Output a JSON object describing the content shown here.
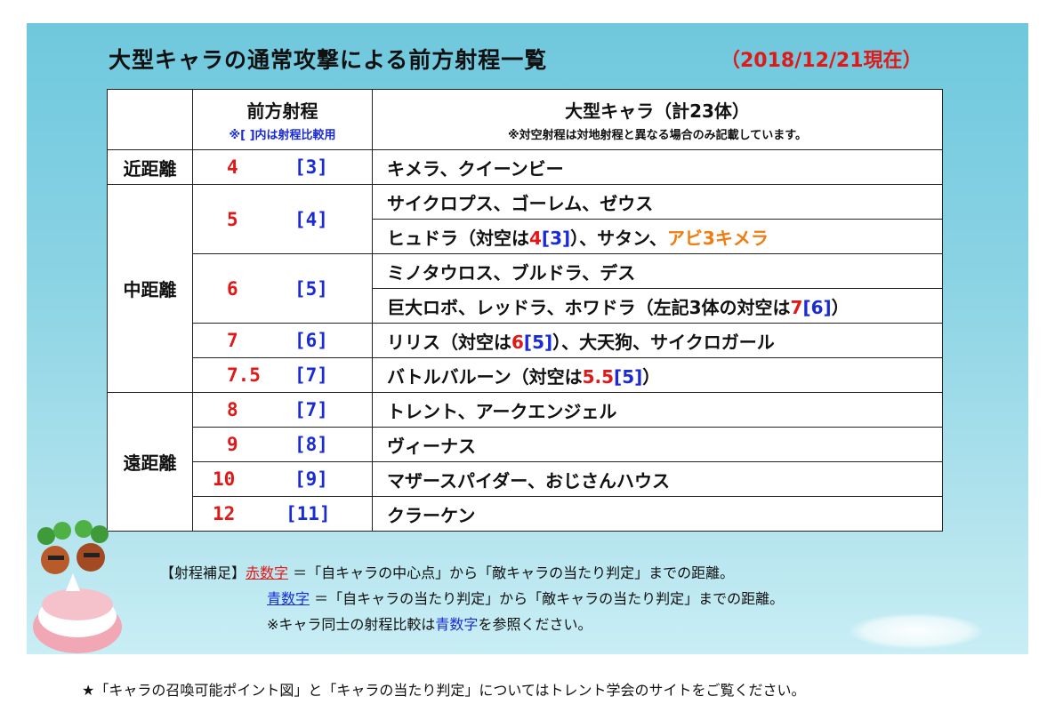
{
  "title": "大型キャラの通常攻撃による前方射程一覧",
  "date": "（2018/12/21現在）",
  "header": {
    "range_title": "前方射程",
    "range_note": "※[ ]内は射程比較用",
    "chars_title": "大型キャラ（計23体）",
    "chars_note": "※対空射程は対地射程と異なる場合のみ記載しています。"
  },
  "bands": {
    "near": "近距離",
    "mid": "中距離",
    "far": "遠距離"
  },
  "rows": [
    {
      "red": "4",
      "blue": "[3]",
      "chars": [
        "キメラ、クイーンビー"
      ]
    },
    {
      "red": "5",
      "blue": "[4]",
      "chars": [
        "サイクロプス、ゴーレム、ゼウス"
      ]
    },
    {
      "chars": [
        "ヒュドラ（対空は",
        "4",
        "[3]",
        "）、サタン、",
        "アビ3キメラ"
      ]
    },
    {
      "red": "6",
      "blue": "[5]",
      "chars": [
        "ミノタウロス、ブルドラ、デス"
      ]
    },
    {
      "chars": [
        "巨大ロボ、レッドラ、ホワドラ（左記3体の対空は",
        "7",
        "[6]",
        "）"
      ]
    },
    {
      "red": "7",
      "blue": "[6]",
      "chars": [
        "リリス（対空は",
        "6",
        "[5]",
        "）、大天狗、サイクロガール"
      ]
    },
    {
      "red": "7.5",
      "blue": "[7]",
      "chars": [
        "バトルバルーン（対空は",
        "5.5",
        "[5]",
        "）"
      ]
    },
    {
      "red": "8",
      "blue": "[7]",
      "chars": [
        "トレント、アークエンジェル"
      ]
    },
    {
      "red": "9",
      "blue": "[8]",
      "chars": [
        "ヴィーナス"
      ]
    },
    {
      "red": "10",
      "blue": "[9]",
      "chars": [
        "マザースパイダー、おじさんハウス"
      ]
    },
    {
      "red": "12",
      "blue": "[11]",
      "chars": [
        "クラーケン"
      ]
    }
  ],
  "notes": {
    "label": "【射程補足】",
    "red_word": "赤数字",
    "red_text": "＝「自キャラの中心点」から「敵キャラの当たり判定」までの距離。",
    "blue_word": "青数字",
    "blue_text": "＝「自キャラの当たり判定」から「敵キャラの当たり判定」までの距離。",
    "compare_pre": "※キャラ同士の射程比較は",
    "compare_word": "青数字",
    "compare_post": "を参照ください。"
  },
  "footer": "★「キャラの召喚可能ポイント図」と「キャラの当たり判定」についてはトレント学会のサイトをご覧ください。",
  "colors": {
    "red": "#e01818",
    "blue": "#1a2bd6",
    "orange": "#f07c10",
    "sky": "#8ad3e4"
  }
}
